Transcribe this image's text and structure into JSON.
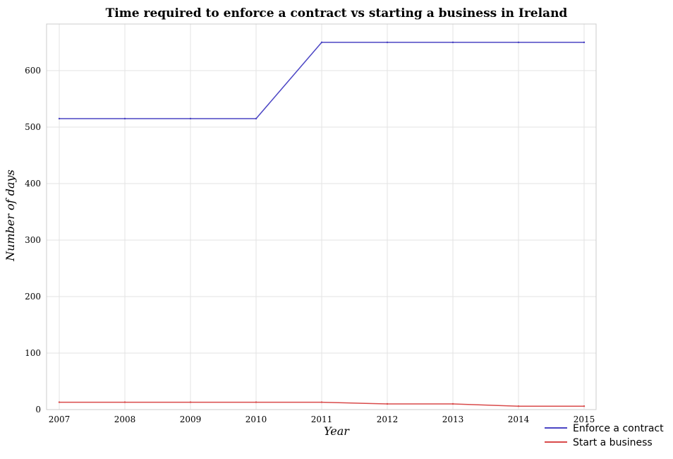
{
  "chart_data": {
    "type": "line",
    "title": "Time required to enforce a contract vs starting a business in Ireland",
    "xlabel": "Year",
    "ylabel": "Number of days",
    "categories": [
      "2007",
      "2008",
      "2009",
      "2010",
      "2011",
      "2012",
      "2013",
      "2014",
      "2015"
    ],
    "series": [
      {
        "name": "Enforce a contract",
        "color": "#4b45c4",
        "values": [
          515,
          515,
          515,
          515,
          650,
          650,
          650,
          650,
          650
        ]
      },
      {
        "name": "Start a business",
        "color": "#d94a4a",
        "values": [
          13,
          13,
          13,
          13,
          13,
          10,
          10,
          6,
          6
        ]
      }
    ],
    "yticks": [
      0,
      100,
      200,
      300,
      400,
      500,
      600
    ],
    "ylim": [
      0,
      682.5
    ],
    "grid": true,
    "legend_position": "bottom-right"
  }
}
